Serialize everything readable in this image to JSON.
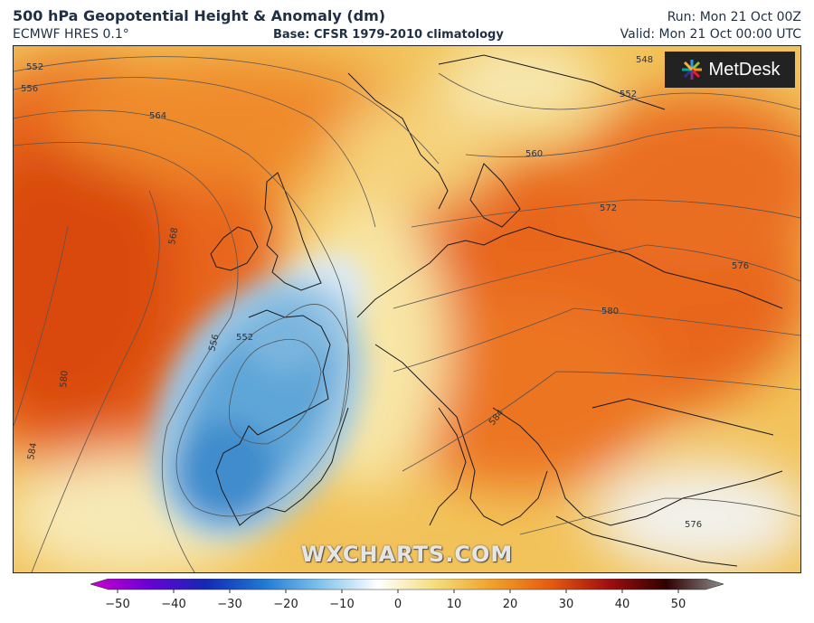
{
  "header": {
    "title": "500 hPa Geopotential Height & Anomaly (dm)",
    "model": "ECMWF HRES 0.1°",
    "base": "Base: CFSR 1979-2010 climatology",
    "run": "Run: Mon 21 Oct 00Z",
    "valid": "Valid: Mon 21 Oct 00:00 UTC"
  },
  "logo": {
    "text": "MetDesk",
    "icon": "starburst-icon"
  },
  "watermark": "WXCHARTS.COM",
  "contours": [
    {
      "label": "552"
    },
    {
      "label": "556"
    },
    {
      "label": "564"
    },
    {
      "label": "568"
    },
    {
      "label": "580"
    },
    {
      "label": "584"
    },
    {
      "label": "556"
    },
    {
      "label": "552"
    },
    {
      "label": "548"
    },
    {
      "label": "552"
    },
    {
      "label": "560"
    },
    {
      "label": "572"
    },
    {
      "label": "576"
    },
    {
      "label": "580"
    },
    {
      "label": "584"
    },
    {
      "label": "576"
    }
  ],
  "colorbar": {
    "ticks": [
      "−50",
      "−40",
      "−30",
      "−20",
      "−10",
      "0",
      "10",
      "20",
      "30",
      "40",
      "50"
    ],
    "range": [
      -50,
      50
    ],
    "colors": [
      "#cc00cc",
      "#6a00d4",
      "#1428b4",
      "#1e78d2",
      "#82c3eb",
      "#ffffff",
      "#f5dc7a",
      "#f0a028",
      "#e65a0f",
      "#a00f0f",
      "#300000",
      "#8c8c8c"
    ]
  }
}
